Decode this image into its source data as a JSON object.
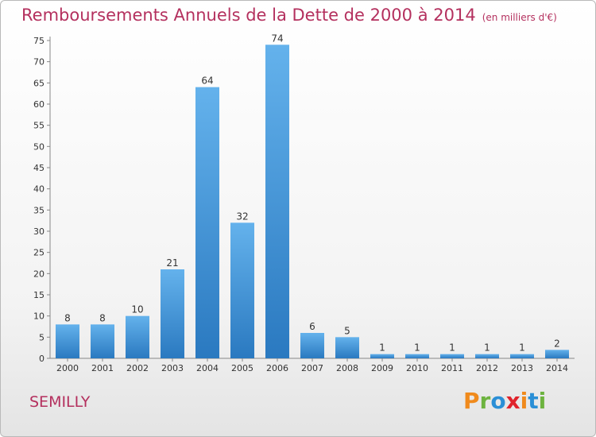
{
  "chart_data": {
    "type": "bar",
    "title": "Remboursements Annuels de la Dette de 2000 à 2014",
    "unit_note": "(en milliers d'€)",
    "categories": [
      "2000",
      "2001",
      "2002",
      "2003",
      "2004",
      "2005",
      "2006",
      "2007",
      "2008",
      "2009",
      "2010",
      "2011",
      "2012",
      "2013",
      "2014"
    ],
    "values": [
      8,
      8,
      10,
      21,
      64,
      32,
      74,
      6,
      5,
      1,
      1,
      1,
      1,
      1,
      2
    ],
    "yticks": [
      0,
      5,
      10,
      15,
      20,
      25,
      30,
      35,
      40,
      45,
      50,
      55,
      60,
      65,
      70,
      75
    ],
    "ylim": [
      0,
      75
    ],
    "xlabel": "",
    "ylabel": "",
    "grid": false,
    "bar_color": "#3d8fd5"
  },
  "footer": {
    "city": "SEMILLY",
    "logo": [
      "P",
      "r",
      "o",
      "x",
      "i",
      "t",
      "i"
    ],
    "logo_colors": [
      "#f08a1c",
      "#6db33f",
      "#2b8fd6",
      "#e0232c",
      "#f08a1c",
      "#2b8fd6",
      "#6db33f"
    ]
  }
}
